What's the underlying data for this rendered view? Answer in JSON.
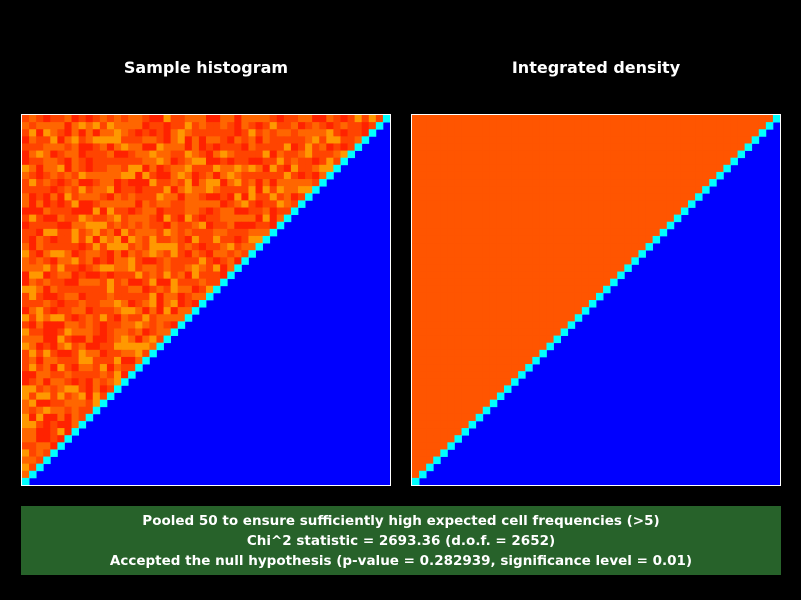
{
  "chart_data": [
    {
      "type": "heatmap",
      "title": "Sample histogram",
      "grid_cells": 52,
      "region_above_diagonal": "noisy values around uniform density, rendered in red-orange",
      "region_below_diagonal": "zero density, rendered in blue",
      "diagonal": "intermediate values rendered in cyan/green/yellow"
    },
    {
      "type": "heatmap",
      "title": "Integrated density",
      "grid_cells": 52,
      "region_above_diagonal": "uniform density, rendered in orange",
      "region_below_diagonal": "zero density, rendered in blue",
      "diagonal": "intermediate values rendered in cyan/green/yellow"
    }
  ],
  "colors": {
    "background": "#000000",
    "zero": "#0000ff",
    "uniform": "#ff5500",
    "status_background": "#27622a",
    "text": "#ffffff"
  },
  "status": {
    "line1": "Pooled 50 to ensure sufficiently high expected cell frequencies (>5)",
    "line2": "Chi^2 statistic = 2693.36 (d.o.f. = 2652)",
    "line3": "Accepted the null hypothesis (p-value = 0.282939, significance level = 0.01)"
  }
}
